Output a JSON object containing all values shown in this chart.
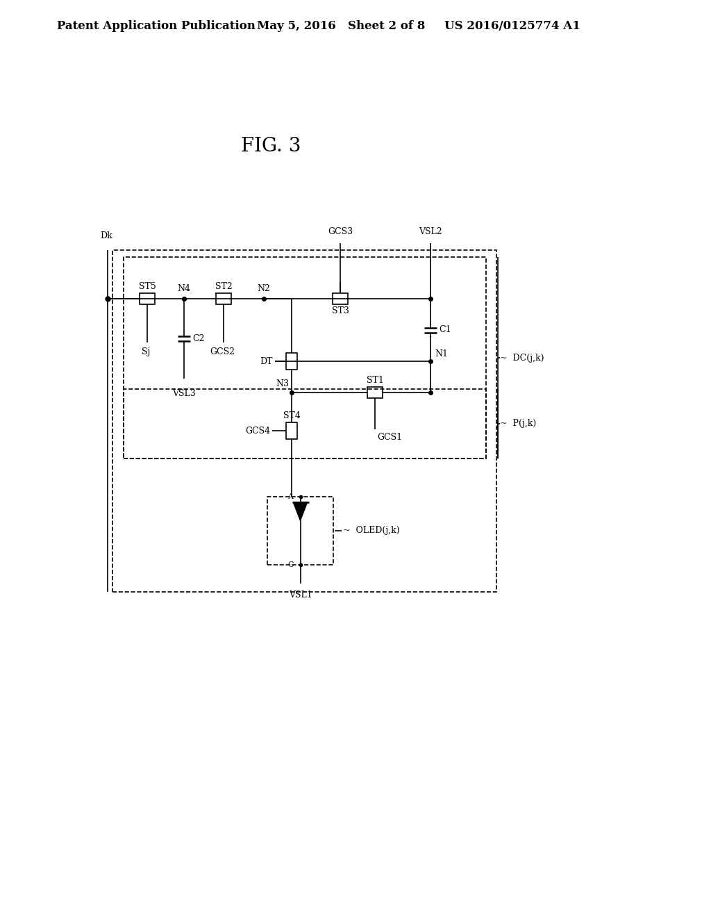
{
  "header_left": "Patent Application Publication",
  "header_mid": "May 5, 2016   Sheet 2 of 8",
  "header_right": "US 2016/0125774 A1",
  "title": "FIG. 3",
  "bg_color": "#ffffff",
  "lc": "#000000",
  "tc": "#000000",
  "header_fontsize": 12,
  "title_fontsize": 20,
  "label_fontsize": 9,
  "small_fontsize": 8,
  "lw": 1.2,
  "lw2": 1.8
}
